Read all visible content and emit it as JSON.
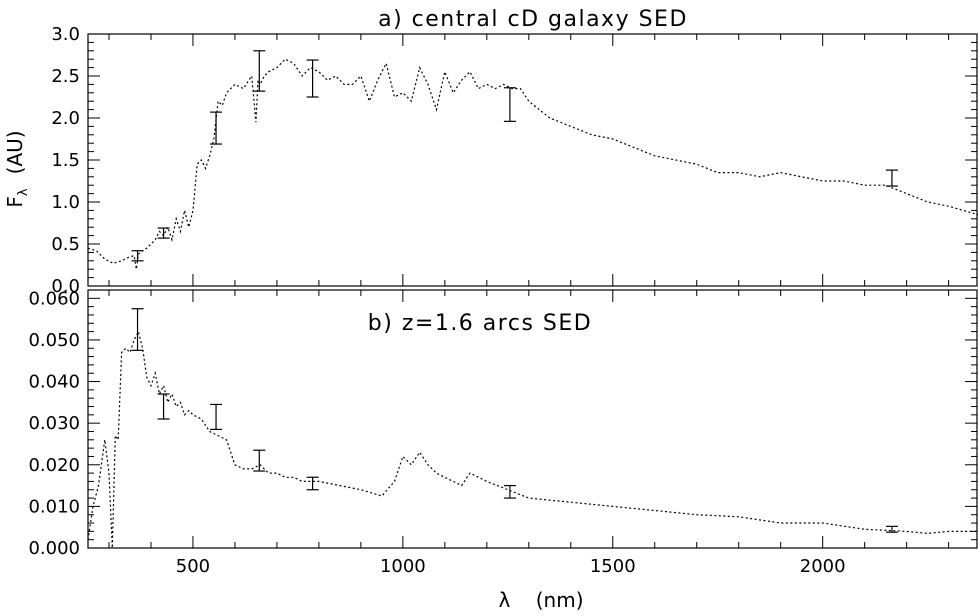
{
  "chart_data": [
    {
      "type": "line",
      "title": "a)  central cD galaxy SED",
      "ylabel_main": "F",
      "ylabel_sub": "λ",
      "ylabel_unit": "(AU)",
      "xlim": [
        250,
        2370
      ],
      "ylim": [
        0.0,
        3.0
      ],
      "yticks": [
        0.0,
        0.5,
        1.0,
        1.5,
        2.0,
        2.5,
        3.0
      ],
      "ytick_labels": [
        "0.0",
        "0.5",
        "1.0",
        "1.5",
        "2.0",
        "2.5",
        "3.0"
      ],
      "line_style": "dotted",
      "x": [
        250,
        270,
        290,
        310,
        330,
        350,
        360,
        365,
        370,
        380,
        390,
        400,
        410,
        420,
        430,
        440,
        450,
        460,
        470,
        480,
        490,
        500,
        510,
        520,
        530,
        540,
        550,
        560,
        570,
        580,
        590,
        600,
        620,
        640,
        650,
        655,
        660,
        670,
        680,
        700,
        720,
        740,
        760,
        780,
        800,
        820,
        840,
        860,
        880,
        900,
        920,
        940,
        960,
        980,
        1000,
        1020,
        1040,
        1060,
        1080,
        1100,
        1120,
        1140,
        1160,
        1180,
        1200,
        1220,
        1240,
        1260,
        1280,
        1300,
        1350,
        1400,
        1450,
        1500,
        1550,
        1600,
        1650,
        1700,
        1750,
        1800,
        1850,
        1900,
        1950,
        2000,
        2050,
        2100,
        2150,
        2200,
        2250,
        2300,
        2370
      ],
      "y": [
        0.45,
        0.42,
        0.32,
        0.27,
        0.3,
        0.35,
        0.36,
        0.2,
        0.38,
        0.42,
        0.45,
        0.5,
        0.55,
        0.65,
        0.6,
        0.7,
        0.55,
        0.8,
        0.65,
        0.9,
        0.7,
        0.9,
        1.45,
        1.5,
        1.4,
        1.55,
        1.75,
        2.2,
        2.15,
        2.3,
        2.35,
        2.4,
        2.35,
        2.5,
        1.95,
        2.45,
        2.4,
        2.5,
        2.55,
        2.6,
        2.7,
        2.65,
        2.5,
        2.6,
        2.55,
        2.45,
        2.5,
        2.4,
        2.4,
        2.5,
        2.2,
        2.45,
        2.65,
        2.25,
        2.3,
        2.2,
        2.6,
        2.4,
        2.1,
        2.55,
        2.3,
        2.45,
        2.55,
        2.35,
        2.4,
        2.35,
        2.4,
        2.35,
        2.35,
        2.2,
        2.0,
        1.9,
        1.8,
        1.75,
        1.65,
        1.55,
        1.5,
        1.45,
        1.35,
        1.35,
        1.3,
        1.35,
        1.3,
        1.25,
        1.25,
        1.2,
        1.2,
        1.1,
        1.0,
        0.95,
        0.85
      ],
      "errorbars": [
        {
          "x": 368,
          "y": 0.35,
          "lo": 0.3,
          "hi": 0.42
        },
        {
          "x": 430,
          "y": 0.63,
          "lo": 0.57,
          "hi": 0.69
        },
        {
          "x": 555,
          "y": 1.88,
          "lo": 1.69,
          "hi": 2.07
        },
        {
          "x": 658,
          "y": 2.56,
          "lo": 2.32,
          "hi": 2.8
        },
        {
          "x": 785,
          "y": 2.47,
          "lo": 2.25,
          "hi": 2.69
        },
        {
          "x": 1255,
          "y": 2.16,
          "lo": 1.96,
          "hi": 2.36
        },
        {
          "x": 2165,
          "y": 1.28,
          "lo": 1.19,
          "hi": 1.38
        }
      ]
    },
    {
      "type": "line",
      "title": "b) z=1.6 arcs SED",
      "xlabel": "λ    (nm)",
      "xlim": [
        250,
        2370
      ],
      "ylim": [
        0.0,
        0.062
      ],
      "xticks": [
        500,
        1000,
        1500,
        2000
      ],
      "xtick_labels": [
        "500",
        "1000",
        "1500",
        "2000"
      ],
      "yticks": [
        0.0,
        0.01,
        0.02,
        0.03,
        0.04,
        0.05,
        0.06
      ],
      "ytick_labels": [
        "0.000",
        "0.010",
        "0.020",
        "0.030",
        "0.040",
        "0.050",
        "0.060"
      ],
      "line_style": "dotted",
      "x": [
        250,
        262,
        275,
        290,
        300,
        308,
        315,
        322,
        330,
        340,
        350,
        360,
        370,
        380,
        390,
        400,
        410,
        420,
        430,
        440,
        450,
        460,
        470,
        480,
        490,
        500,
        520,
        540,
        560,
        580,
        600,
        620,
        640,
        660,
        680,
        700,
        720,
        740,
        760,
        780,
        800,
        850,
        900,
        950,
        980,
        1000,
        1020,
        1040,
        1060,
        1080,
        1100,
        1120,
        1140,
        1160,
        1200,
        1250,
        1300,
        1400,
        1500,
        1600,
        1700,
        1800,
        1900,
        2000,
        2100,
        2200,
        2250,
        2300,
        2370
      ],
      "y": [
        0.002,
        0.01,
        0.015,
        0.026,
        0.018,
        0.0,
        0.027,
        0.026,
        0.047,
        0.048,
        0.047,
        0.05,
        0.052,
        0.048,
        0.041,
        0.039,
        0.042,
        0.037,
        0.039,
        0.035,
        0.037,
        0.034,
        0.035,
        0.032,
        0.033,
        0.032,
        0.031,
        0.028,
        0.027,
        0.026,
        0.02,
        0.019,
        0.019,
        0.02,
        0.018,
        0.018,
        0.017,
        0.017,
        0.016,
        0.016,
        0.016,
        0.015,
        0.014,
        0.0125,
        0.016,
        0.022,
        0.02,
        0.023,
        0.02,
        0.018,
        0.017,
        0.016,
        0.015,
        0.018,
        0.016,
        0.014,
        0.012,
        0.011,
        0.01,
        0.009,
        0.008,
        0.0075,
        0.006,
        0.006,
        0.0045,
        0.004,
        0.0035,
        0.004,
        0.004
      ],
      "errorbars": [
        {
          "x": 368,
          "y": 0.0525,
          "lo": 0.0475,
          "hi": 0.0575
        },
        {
          "x": 430,
          "y": 0.034,
          "lo": 0.031,
          "hi": 0.037
        },
        {
          "x": 555,
          "y": 0.0315,
          "lo": 0.0285,
          "hi": 0.0345
        },
        {
          "x": 658,
          "y": 0.021,
          "lo": 0.0185,
          "hi": 0.0235
        },
        {
          "x": 785,
          "y": 0.0155,
          "lo": 0.014,
          "hi": 0.017
        },
        {
          "x": 1255,
          "y": 0.0135,
          "lo": 0.012,
          "hi": 0.015
        },
        {
          "x": 2165,
          "y": 0.0045,
          "lo": 0.0038,
          "hi": 0.0052
        }
      ]
    }
  ]
}
